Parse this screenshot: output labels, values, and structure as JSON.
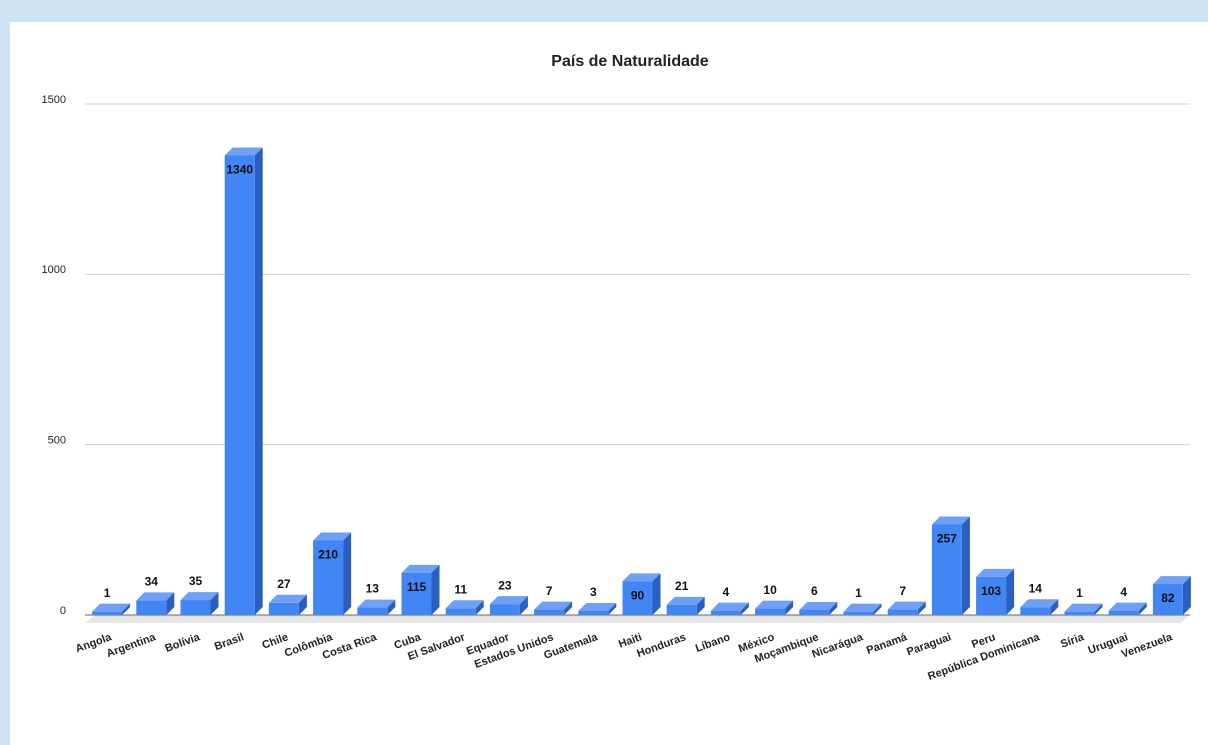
{
  "chart_data": {
    "type": "bar3d",
    "title": "País de Naturalidade",
    "categories": [
      "Angola",
      "Argentina",
      "Bolívia",
      "Brasil",
      "Chile",
      "Colômbia",
      "Costa Rica",
      "Cuba",
      "El Salvador",
      "Equador",
      "Estados Unidos",
      "Guatemala",
      "Haiti",
      "Honduras",
      "Líbano",
      "México",
      "Moçambique",
      "Nicarágua",
      "Panamá",
      "Paraguai",
      "Peru",
      "República Dominicana",
      "Síria",
      "Uruguai",
      "Venezuela"
    ],
    "values": [
      1,
      34,
      35,
      1340,
      27,
      210,
      13,
      115,
      11,
      23,
      7,
      3,
      90,
      21,
      4,
      10,
      6,
      1,
      7,
      257,
      103,
      14,
      1,
      4,
      82
    ],
    "color": "#4285f4",
    "ylim": [
      0,
      1500
    ],
    "yticks": [
      0,
      500,
      1000,
      1500
    ],
    "grid": true
  }
}
